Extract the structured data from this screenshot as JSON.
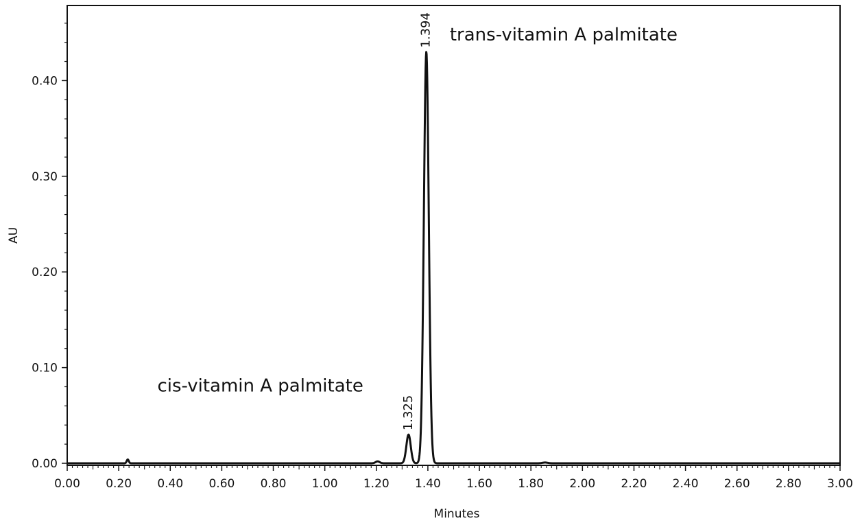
{
  "chart_data": {
    "type": "line",
    "xlabel": "Minutes",
    "ylabel": "AU",
    "xlim": [
      0.0,
      3.0
    ],
    "ylim": [
      0.0,
      0.48
    ],
    "x_ticks": [
      "0.00",
      "0.20",
      "0.40",
      "0.60",
      "0.80",
      "1.00",
      "1.20",
      "1.40",
      "1.60",
      "1.80",
      "2.00",
      "2.20",
      "2.40",
      "2.60",
      "2.80",
      "3.00"
    ],
    "y_ticks": [
      "0.00",
      "0.10",
      "0.20",
      "0.30",
      "0.40"
    ],
    "grid": false,
    "series": [
      {
        "peaks": [
          {
            "rt": 0.235,
            "height": 0.004,
            "width": 0.004
          },
          {
            "rt": 1.205,
            "height": 0.002,
            "width": 0.008
          },
          {
            "rt": 1.325,
            "height": 0.03,
            "width": 0.0085
          },
          {
            "rt": 1.394,
            "height": 0.43,
            "width": 0.0095
          },
          {
            "rt": 1.855,
            "height": 0.0008,
            "width": 0.01
          }
        ]
      }
    ],
    "peak_labels": [
      {
        "rt": 1.325,
        "text": "1.325"
      },
      {
        "rt": 1.394,
        "text": "1.394"
      }
    ],
    "annotations": [
      {
        "text": "cis-vitamin A palmitate",
        "x": 0.35,
        "y": 0.075
      },
      {
        "text": "trans-vitamin A palmitate",
        "x": 1.485,
        "y": 0.442
      }
    ]
  }
}
